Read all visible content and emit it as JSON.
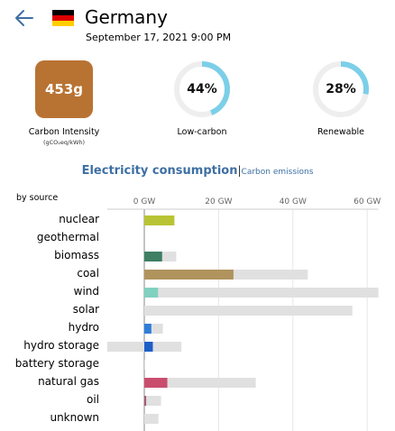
{
  "header": {
    "country": "Germany",
    "datetime": "September 17, 2021 9:00 PM"
  },
  "metrics": {
    "carbon_intensity_value": "453g",
    "carbon_intensity_label": "Carbon Intensity",
    "carbon_intensity_unit": "(gCO₂eq/kWh)",
    "carbon_intensity_color": "#b87333",
    "low_carbon_value": "44%",
    "low_carbon_fraction": 0.44,
    "low_carbon_label": "Low-carbon",
    "renewable_value": "28%",
    "renewable_fraction": 0.28,
    "renewable_label": "Renewable",
    "gauge_color": "#7ccfe8",
    "gauge_track_color": "#eeeeee"
  },
  "tabs": {
    "electricity": "Electricity consumption",
    "separator": "|",
    "carbon": "Carbon emissions"
  },
  "chart": {
    "by_source_label": "by source",
    "icons": {
      "back": "back-arrow-icon",
      "flag": "germany-flag-icon"
    }
  },
  "chart_data": {
    "type": "bar",
    "x_axis_ticks": [
      "0 GW",
      "20 GW",
      "40 GW",
      "60 GW"
    ],
    "x_tick_values": [
      0,
      20,
      40,
      60
    ],
    "xlim": [
      -10,
      63
    ],
    "unit": "GW",
    "categories": [
      "nuclear",
      "geothermal",
      "biomass",
      "coal",
      "wind",
      "solar",
      "hydro",
      "hydro storage",
      "battery storage",
      "natural gas",
      "oil",
      "unknown"
    ],
    "series": [
      {
        "name": "production",
        "values": [
          8.1,
          0,
          4.8,
          24,
          3.7,
          0,
          1.9,
          2.3,
          0,
          6.2,
          0.5,
          0
        ]
      },
      {
        "name": "capacity",
        "values": [
          8.1,
          0,
          8.6,
          44,
          63,
          56,
          5,
          10,
          0.2,
          30,
          4.5,
          3.8
        ]
      }
    ],
    "negative_capacity": {
      "hydro storage": -10
    },
    "colors": {
      "nuclear": "#b8c433",
      "geothermal": "#999999",
      "biomass": "#3f7f63",
      "coal": "#b0935d",
      "wind": "#80d1c0",
      "solar": "#f7c845",
      "hydro": "#2f7ed8",
      "hydro storage": "#1d5fc7",
      "battery storage": "#6d8fcf",
      "natural gas": "#c94e6e",
      "oil": "#a35b7a",
      "unknown": "#aaaaaa"
    },
    "capacity_color": "#e0e0e0",
    "grid": true
  }
}
